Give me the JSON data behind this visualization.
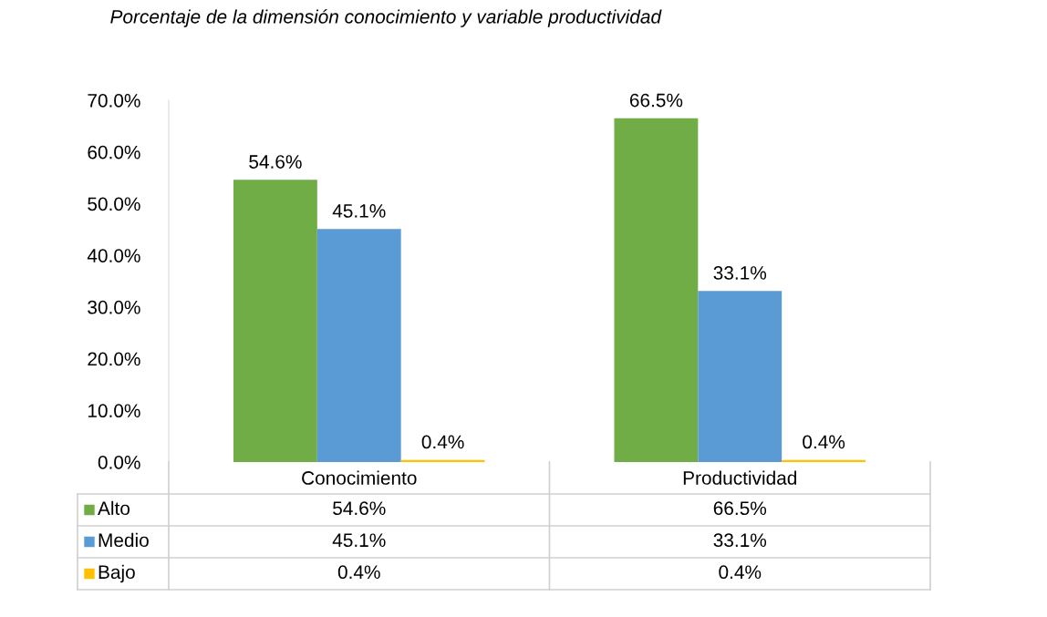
{
  "chart_data": {
    "type": "bar",
    "title": "Porcentaje de la dimensión conocimiento y variable productividad",
    "categories": [
      "Conocimiento",
      "Productividad"
    ],
    "series": [
      {
        "name": "Alto",
        "color": "#70ad47",
        "values": [
          54.6,
          66.5
        ],
        "value_labels": [
          "54.6%",
          "66.5%"
        ]
      },
      {
        "name": "Medio",
        "color": "#5b9bd5",
        "values": [
          45.1,
          33.1
        ],
        "value_labels": [
          "45.1%",
          "33.1%"
        ]
      },
      {
        "name": "Bajo",
        "color": "#ffc000",
        "values": [
          0.4,
          0.4
        ],
        "value_labels": [
          "0.4%",
          "0.4%"
        ]
      }
    ],
    "ylim": [
      0,
      70
    ],
    "yticks": [
      {
        "value": 0,
        "label": "0.0%"
      },
      {
        "value": 10,
        "label": "10.0%"
      },
      {
        "value": 20,
        "label": "20.0%"
      },
      {
        "value": 30,
        "label": "30.0%"
      },
      {
        "value": 40,
        "label": "40.0%"
      },
      {
        "value": 50,
        "label": "50.0%"
      },
      {
        "value": 60,
        "label": "60.0%"
      },
      {
        "value": 70,
        "label": "70.0%"
      }
    ],
    "grid": false,
    "legend": "bottom"
  }
}
